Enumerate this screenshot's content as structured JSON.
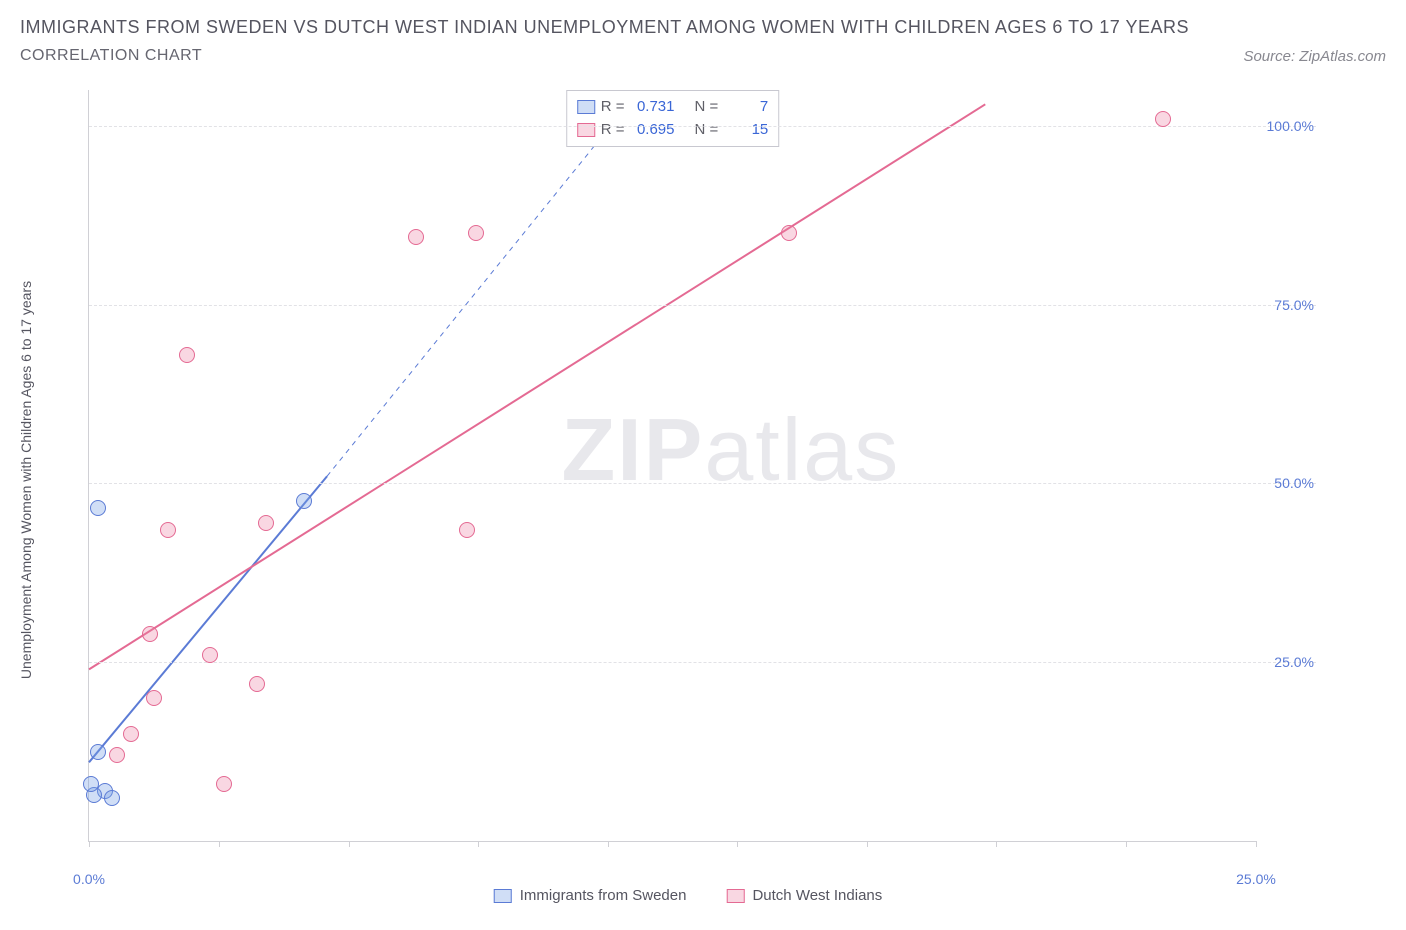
{
  "title": "IMMIGRANTS FROM SWEDEN VS DUTCH WEST INDIAN UNEMPLOYMENT AMONG WOMEN WITH CHILDREN AGES 6 TO 17 YEARS",
  "subtitle": "CORRELATION CHART",
  "source": "Source: ZipAtlas.com",
  "watermark_bold": "ZIP",
  "watermark_light": "atlas",
  "chart": {
    "type": "scatter",
    "ylabel": "Unemployment Among Women with Children Ages 6 to 17 years",
    "xlim": [
      0,
      25
    ],
    "ylim": [
      0,
      105
    ],
    "ytick_values": [
      25,
      50,
      75,
      100
    ],
    "ytick_labels": [
      "25.0%",
      "50.0%",
      "75.0%",
      "100.0%"
    ],
    "xtick_values": [
      0,
      2.78,
      5.56,
      8.33,
      11.11,
      13.89,
      16.67,
      19.44,
      22.22,
      25
    ],
    "xtick_labels": {
      "0": "0.0%",
      "25": "25.0%"
    },
    "grid_color": "#e2e2e6",
    "axis_color": "#d0d0d5",
    "background_color": "#ffffff",
    "label_fontsize": 14,
    "tick_color": "#5b7bd5",
    "marker_radius": 8,
    "series": [
      {
        "name": "Immigrants from Sweden",
        "color_fill": "rgba(120,160,230,0.35)",
        "color_stroke": "#5b7bd5",
        "r_label": "R =",
        "r_value": "0.731",
        "n_label": "N =",
        "n_value": "7",
        "points": [
          {
            "x": 0.2,
            "y": 46.5
          },
          {
            "x": 4.6,
            "y": 47.5
          },
          {
            "x": 0.2,
            "y": 12.5
          },
          {
            "x": 0.35,
            "y": 7.0
          },
          {
            "x": 0.1,
            "y": 6.5
          },
          {
            "x": 0.05,
            "y": 8.0
          },
          {
            "x": 0.5,
            "y": 6.0
          }
        ],
        "trend": {
          "x1": 0,
          "y1": 11,
          "x2": 5.1,
          "y2": 51,
          "style": "solid",
          "width": 2,
          "dash_ext": {
            "x2": 11.3,
            "y2": 101
          }
        }
      },
      {
        "name": "Dutch West Indians",
        "color_fill": "rgba(235,130,165,0.32)",
        "color_stroke": "#e46a93",
        "r_label": "R =",
        "r_value": "0.695",
        "n_label": "N =",
        "n_value": "15",
        "points": [
          {
            "x": 23.0,
            "y": 101.0
          },
          {
            "x": 15.0,
            "y": 85.0
          },
          {
            "x": 7.0,
            "y": 84.5
          },
          {
            "x": 8.3,
            "y": 85.0
          },
          {
            "x": 2.1,
            "y": 68.0
          },
          {
            "x": 1.7,
            "y": 43.5
          },
          {
            "x": 3.8,
            "y": 44.5
          },
          {
            "x": 8.1,
            "y": 43.5
          },
          {
            "x": 1.3,
            "y": 29.0
          },
          {
            "x": 2.6,
            "y": 26.0
          },
          {
            "x": 3.6,
            "y": 22.0
          },
          {
            "x": 1.4,
            "y": 20.0
          },
          {
            "x": 0.9,
            "y": 15.0
          },
          {
            "x": 0.6,
            "y": 12.0
          },
          {
            "x": 2.9,
            "y": 8.0
          }
        ],
        "trend": {
          "x1": 0,
          "y1": 24,
          "x2": 19.2,
          "y2": 103,
          "style": "solid",
          "width": 2
        }
      }
    ]
  }
}
